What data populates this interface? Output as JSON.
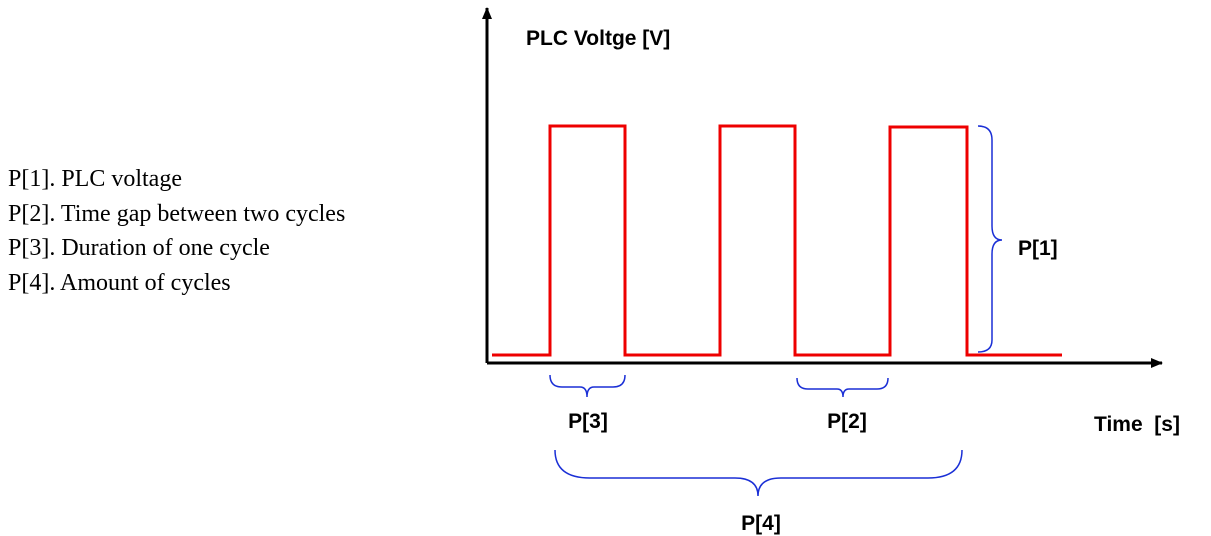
{
  "legend": [
    "P[1]. PLC voltage",
    "P[2]. Time gap between two cycles",
    "P[3]. Duration of one cycle",
    "P[4]. Amount of cycles"
  ],
  "y_axis_label": "PLC Voltge [V]",
  "x_axis_label": "Time  [s]",
  "annotations": [
    "P[1]",
    "P[2]",
    "P[3]",
    "P[4]"
  ]
}
